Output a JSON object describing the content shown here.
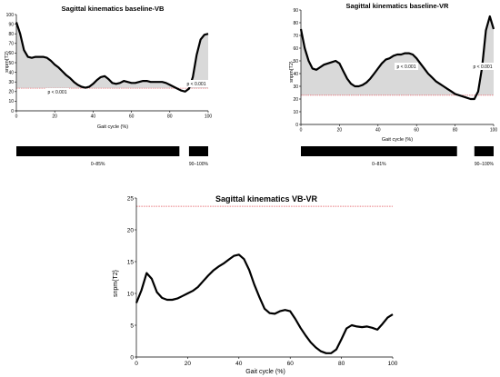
{
  "chart_data": [
    {
      "id": "vb",
      "type": "line",
      "title": "Sagittal kinematics baseline-VB",
      "xlabel": "Gait cycle (%)",
      "ylabel": "snpm{T2}",
      "xlim": [
        0,
        100
      ],
      "ylim": [
        0,
        100
      ],
      "xticks": [
        0,
        20,
        40,
        60,
        80,
        100
      ],
      "yticks": [
        0,
        10,
        20,
        30,
        40,
        50,
        60,
        70,
        80,
        90,
        100
      ],
      "threshold": 23.5,
      "series": [
        {
          "x": [
            0,
            2,
            4,
            6,
            8,
            10,
            12,
            14,
            16,
            18,
            20,
            22,
            24,
            26,
            28,
            30,
            32,
            34,
            36,
            38,
            40,
            42,
            44,
            46,
            48,
            50,
            52,
            54,
            56,
            58,
            60,
            62,
            64,
            66,
            68,
            70,
            72,
            74,
            76,
            78,
            80,
            82,
            84,
            86,
            88,
            90,
            92,
            94,
            96,
            98,
            100
          ],
          "values": [
            92,
            80,
            63,
            56,
            55,
            56,
            56,
            56,
            55,
            52,
            48,
            45,
            41,
            37,
            34,
            30,
            27,
            25,
            24,
            25,
            28,
            32,
            35,
            36,
            33,
            29,
            28,
            29,
            31,
            30,
            29,
            29,
            30,
            31,
            31,
            30,
            30,
            30,
            30,
            29,
            27,
            25,
            23,
            21,
            20,
            23,
            35,
            58,
            74,
            79,
            80
          ]
        }
      ],
      "annotations": [
        "p < 0.001",
        "p < 0.001"
      ],
      "clusters": [
        {
          "start": 0,
          "end": 85,
          "label": "0–85%"
        },
        {
          "start": 90,
          "end": 100,
          "label": "90–100%"
        }
      ]
    },
    {
      "id": "vr",
      "type": "line",
      "title": "Sagittal kinematics baseline-VR",
      "xlabel": "Gait cycle (%)",
      "ylabel": "snpm{T2}",
      "xlim": [
        0,
        100
      ],
      "ylim": [
        0,
        90
      ],
      "xticks": [
        0,
        20,
        40,
        60,
        80,
        100
      ],
      "yticks": [
        0,
        10,
        20,
        30,
        40,
        50,
        60,
        70,
        80,
        90
      ],
      "threshold": 23,
      "series": [
        {
          "x": [
            0,
            2,
            4,
            6,
            8,
            10,
            12,
            14,
            16,
            18,
            20,
            22,
            24,
            26,
            28,
            30,
            32,
            34,
            36,
            38,
            40,
            42,
            44,
            46,
            48,
            50,
            52,
            54,
            56,
            58,
            60,
            62,
            64,
            66,
            68,
            70,
            72,
            74,
            76,
            78,
            80,
            82,
            84,
            86,
            88,
            90,
            92,
            94,
            96,
            98,
            100
          ],
          "values": [
            75,
            60,
            50,
            44,
            43,
            45,
            47,
            48,
            49,
            50,
            48,
            42,
            36,
            32,
            30,
            30,
            31,
            33,
            36,
            40,
            44,
            48,
            51,
            52,
            54,
            55,
            55,
            56,
            56,
            55,
            52,
            48,
            44,
            40,
            37,
            34,
            32,
            30,
            28,
            26,
            24,
            23,
            22,
            21,
            20,
            20,
            26,
            45,
            74,
            85,
            75
          ]
        }
      ],
      "annotations": [
        "p < 0.001",
        "p < 0.001"
      ],
      "clusters": [
        {
          "start": 0,
          "end": 81,
          "label": "0–81%"
        },
        {
          "start": 90,
          "end": 100,
          "label": "90–100%"
        }
      ]
    },
    {
      "id": "vbvr",
      "type": "line",
      "title": "Sagittal kinematics VB-VR",
      "xlabel": "Gait cycle (%)",
      "ylabel": "snpm{T2}",
      "xlim": [
        0,
        100
      ],
      "ylim": [
        0,
        25
      ],
      "xticks": [
        0,
        20,
        40,
        60,
        80,
        100
      ],
      "yticks": [
        0,
        5,
        10,
        15,
        20,
        25
      ],
      "threshold": 23.7,
      "series": [
        {
          "x": [
            0,
            2,
            4,
            6,
            8,
            10,
            12,
            14,
            16,
            18,
            20,
            22,
            24,
            26,
            28,
            30,
            32,
            34,
            36,
            38,
            40,
            42,
            44,
            46,
            48,
            50,
            52,
            54,
            56,
            58,
            60,
            62,
            64,
            66,
            68,
            70,
            72,
            74,
            76,
            78,
            80,
            82,
            84,
            86,
            88,
            90,
            92,
            94,
            96,
            98,
            100
          ],
          "values": [
            8.5,
            10.5,
            13.2,
            12.3,
            10.2,
            9.3,
            9.0,
            9.0,
            9.2,
            9.6,
            10.0,
            10.4,
            11.0,
            11.9,
            12.8,
            13.6,
            14.2,
            14.7,
            15.3,
            15.9,
            16.1,
            15.4,
            13.7,
            11.4,
            9.4,
            7.6,
            6.9,
            6.8,
            7.2,
            7.4,
            7.2,
            6.0,
            4.6,
            3.4,
            2.3,
            1.5,
            0.9,
            0.6,
            0.6,
            1.2,
            2.8,
            4.5,
            5.0,
            4.8,
            4.7,
            4.8,
            4.6,
            4.3,
            5.2,
            6.2,
            6.7
          ]
        }
      ]
    }
  ]
}
